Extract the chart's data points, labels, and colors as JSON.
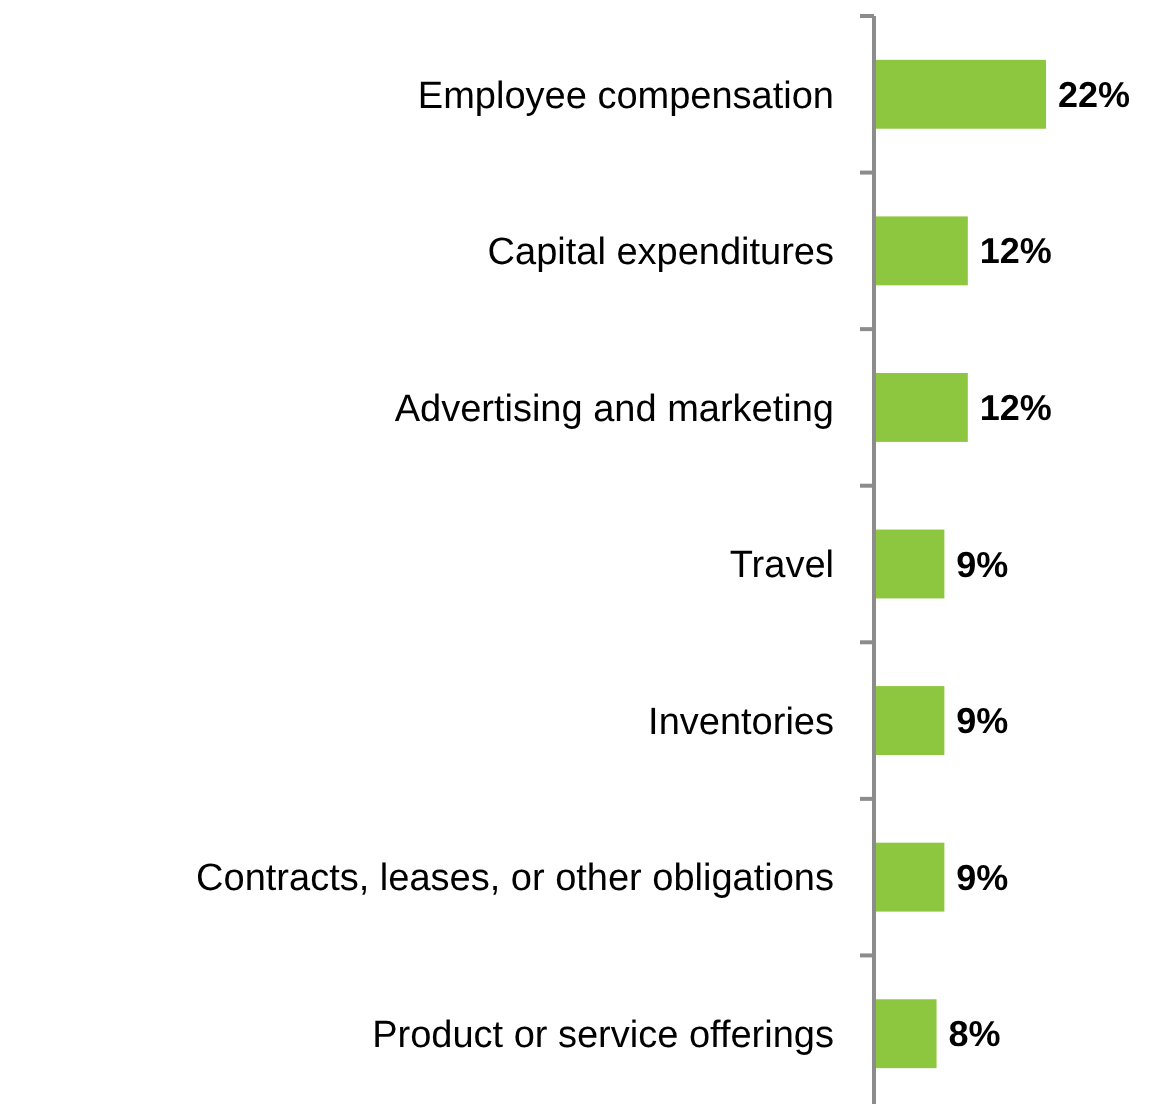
{
  "chart_data": {
    "type": "bar",
    "orientation": "horizontal",
    "categories": [
      "Employee compensation",
      "Capital expenditures",
      "Advertising and marketing",
      "Travel",
      "Inventories",
      "Contracts, leases, or other obligations",
      "Product or service offerings"
    ],
    "values": [
      22,
      12,
      12,
      9,
      9,
      9,
      8
    ],
    "value_labels": [
      "22%",
      "12%",
      "12%",
      "9%",
      "9%",
      "9%",
      "8%"
    ],
    "color": "#8dc63f"
  }
}
